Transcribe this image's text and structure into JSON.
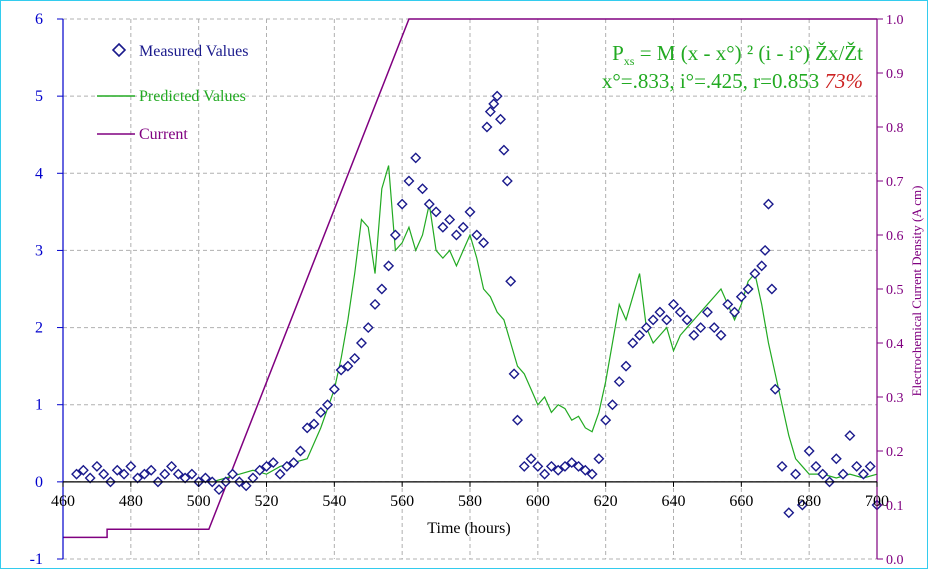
{
  "chart_data": {
    "type": "scatter",
    "title": "",
    "xlabel": "Time (hours)",
    "ylabel": "",
    "y2label": "Electrochemical Current Density (A cm)",
    "xlim": [
      460,
      700
    ],
    "ylim": [
      -1,
      6
    ],
    "y2lim": [
      0.0,
      1.0
    ],
    "xticks": [
      "460",
      "480",
      "500",
      "520",
      "540",
      "560",
      "580",
      "600",
      "620",
      "640",
      "660",
      "680",
      "700"
    ],
    "yticks": [
      "-1",
      "0",
      "1",
      "2",
      "3",
      "4",
      "5",
      "6"
    ],
    "y2ticks": [
      "0.0",
      "0.1",
      "0.2",
      "0.3",
      "0.4",
      "0.5",
      "0.6",
      "0.7",
      "0.8",
      "0.9",
      "1.0"
    ],
    "grid": true,
    "legend": "top-left",
    "colors": {
      "measured": "#1a1a8c",
      "predicted": "#22aa22",
      "current": "#800080",
      "percent": "#cc2222",
      "axis_left": "#0000cc",
      "axis_right": "#800080",
      "grid": "#b0b0b0"
    },
    "annotation": {
      "line1_main": "P",
      "line1_sub": "xs",
      "line1_rest": " = M (x - x°) ² (i - i°) Žx/Žt",
      "line2": "x°=.833, i°=.425, r=0.853 ",
      "percent": "73%"
    },
    "series": [
      {
        "name": "Measured Values",
        "marker": "diamond",
        "axis": "left",
        "x": [
          464,
          466,
          468,
          470,
          472,
          474,
          476,
          478,
          480,
          482,
          484,
          486,
          488,
          490,
          492,
          494,
          496,
          498,
          500,
          502,
          504,
          506,
          508,
          510,
          512,
          514,
          516,
          518,
          520,
          522,
          524,
          526,
          528,
          530,
          532,
          534,
          536,
          538,
          540,
          542,
          544,
          546,
          548,
          550,
          552,
          554,
          556,
          558,
          560,
          562,
          564,
          566,
          568,
          570,
          572,
          574,
          576,
          578,
          580,
          582,
          584,
          585,
          586,
          587,
          588,
          589,
          590,
          591,
          592,
          593,
          594,
          596,
          598,
          600,
          602,
          604,
          606,
          608,
          610,
          612,
          614,
          616,
          618,
          620,
          622,
          624,
          626,
          628,
          630,
          632,
          634,
          636,
          638,
          640,
          642,
          644,
          646,
          648,
          650,
          652,
          654,
          656,
          658,
          660,
          662,
          664,
          666,
          667,
          668,
          669,
          670,
          672,
          674,
          676,
          678,
          680,
          682,
          684,
          686,
          688,
          690,
          692,
          694,
          696,
          698,
          700
        ],
        "y": [
          0.1,
          0.15,
          0.05,
          0.2,
          0.1,
          0.0,
          0.15,
          0.1,
          0.2,
          0.05,
          0.1,
          0.15,
          0.0,
          0.1,
          0.2,
          0.1,
          0.05,
          0.1,
          0.0,
          0.05,
          0.0,
          -0.1,
          0.0,
          0.1,
          0.0,
          -0.05,
          0.05,
          0.15,
          0.2,
          0.25,
          0.1,
          0.2,
          0.25,
          0.4,
          0.7,
          0.75,
          0.9,
          1.0,
          1.2,
          1.45,
          1.5,
          1.6,
          1.8,
          2.0,
          2.3,
          2.5,
          2.8,
          3.2,
          3.6,
          3.9,
          4.2,
          3.8,
          3.6,
          3.5,
          3.3,
          3.4,
          3.2,
          3.3,
          3.5,
          3.2,
          3.1,
          4.6,
          4.8,
          4.9,
          5.0,
          4.7,
          4.3,
          3.9,
          2.6,
          1.4,
          0.8,
          0.2,
          0.3,
          0.2,
          0.1,
          0.2,
          0.15,
          0.2,
          0.25,
          0.2,
          0.15,
          0.1,
          0.3,
          0.8,
          1.0,
          1.3,
          1.5,
          1.8,
          1.9,
          2.0,
          2.1,
          2.2,
          2.1,
          2.3,
          2.2,
          2.1,
          1.9,
          2.0,
          2.2,
          2.0,
          1.9,
          2.3,
          2.2,
          2.4,
          2.5,
          2.7,
          2.8,
          3.0,
          3.6,
          2.5,
          1.2,
          0.2,
          -0.4,
          0.1,
          -0.3,
          0.4,
          0.2,
          0.1,
          0.0,
          0.3,
          0.1,
          0.6,
          0.2,
          0.1,
          0.2,
          -0.3
        ]
      },
      {
        "name": "Predicted Values",
        "marker": "line",
        "axis": "left",
        "x": [
          504,
          508,
          512,
          516,
          520,
          524,
          528,
          532,
          536,
          540,
          542,
          544,
          546,
          548,
          550,
          552,
          554,
          556,
          558,
          560,
          562,
          564,
          566,
          568,
          570,
          572,
          574,
          576,
          578,
          580,
          582,
          584,
          586,
          588,
          590,
          592,
          594,
          596,
          598,
          600,
          602,
          604,
          606,
          608,
          610,
          612,
          614,
          616,
          618,
          620,
          622,
          624,
          626,
          628,
          630,
          632,
          634,
          636,
          638,
          640,
          642,
          644,
          646,
          648,
          650,
          652,
          654,
          656,
          658,
          660,
          662,
          664,
          666,
          668,
          670,
          672,
          674,
          676,
          678,
          680,
          684,
          688,
          692,
          696,
          700
        ],
        "y": [
          0.0,
          0.05,
          0.1,
          0.15,
          0.1,
          0.2,
          0.25,
          0.3,
          0.7,
          1.2,
          1.6,
          2.1,
          2.7,
          3.4,
          3.3,
          2.7,
          3.8,
          4.1,
          3.0,
          3.1,
          3.3,
          3.0,
          3.2,
          3.6,
          3.0,
          2.9,
          3.0,
          2.8,
          3.0,
          3.2,
          2.9,
          2.5,
          2.4,
          2.2,
          2.1,
          1.8,
          1.5,
          1.4,
          1.2,
          1.0,
          1.1,
          0.9,
          1.0,
          0.95,
          0.8,
          0.85,
          0.7,
          0.65,
          0.9,
          1.3,
          1.8,
          2.3,
          2.1,
          2.4,
          2.7,
          2.0,
          1.8,
          1.9,
          2.0,
          1.7,
          1.9,
          2.0,
          2.1,
          2.2,
          2.3,
          2.4,
          2.5,
          2.3,
          2.1,
          2.3,
          2.6,
          2.7,
          2.3,
          1.8,
          1.4,
          1.0,
          0.6,
          0.3,
          0.2,
          0.1,
          0.1,
          0.05,
          0.1,
          0.05,
          0.1
        ]
      },
      {
        "name": "Current",
        "marker": "line",
        "axis": "right",
        "x": [
          460,
          473,
          473,
          503,
          562,
          700
        ],
        "y": [
          0.04,
          0.04,
          0.055,
          0.055,
          1.0,
          1.0
        ]
      }
    ]
  }
}
